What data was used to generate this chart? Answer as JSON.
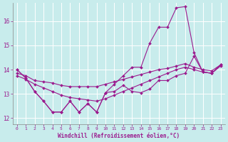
{
  "xlabel": "Windchill (Refroidissement éolien,°C)",
  "background_color": "#c8ecec",
  "line_color": "#9b1b8e",
  "grid_color": "#ffffff",
  "xlim": [
    -0.5,
    23.5
  ],
  "ylim": [
    11.75,
    16.75
  ],
  "yticks": [
    12,
    13,
    14,
    15,
    16
  ],
  "xticks": [
    0,
    1,
    2,
    3,
    4,
    5,
    6,
    7,
    8,
    9,
    10,
    11,
    12,
    13,
    14,
    15,
    16,
    17,
    18,
    19,
    20,
    21,
    22,
    23
  ],
  "series1_y": [
    14.0,
    13.65,
    13.1,
    12.7,
    12.25,
    12.25,
    12.7,
    12.25,
    12.6,
    12.25,
    13.05,
    13.1,
    13.35,
    13.1,
    13.05,
    13.2,
    13.55,
    13.55,
    13.75,
    13.85,
    14.55,
    13.9,
    13.85,
    14.2
  ],
  "series2_y": [
    14.0,
    13.65,
    13.1,
    12.7,
    12.25,
    12.25,
    12.7,
    12.25,
    12.6,
    12.25,
    13.05,
    13.4,
    13.75,
    14.1,
    14.1,
    15.1,
    15.75,
    15.75,
    16.55,
    16.6,
    14.7,
    13.9,
    13.85,
    14.2
  ],
  "series3_y": [
    13.85,
    13.75,
    13.55,
    13.5,
    13.45,
    13.35,
    13.3,
    13.3,
    13.3,
    13.3,
    13.4,
    13.5,
    13.6,
    13.7,
    13.8,
    13.9,
    14.0,
    14.05,
    14.15,
    14.25,
    14.1,
    14.0,
    13.95,
    14.2
  ],
  "series4_y": [
    13.75,
    13.6,
    13.4,
    13.25,
    13.1,
    12.95,
    12.85,
    12.8,
    12.75,
    12.7,
    12.8,
    12.95,
    13.1,
    13.25,
    13.4,
    13.55,
    13.7,
    13.85,
    14.0,
    14.1,
    14.0,
    13.9,
    13.85,
    14.15
  ]
}
